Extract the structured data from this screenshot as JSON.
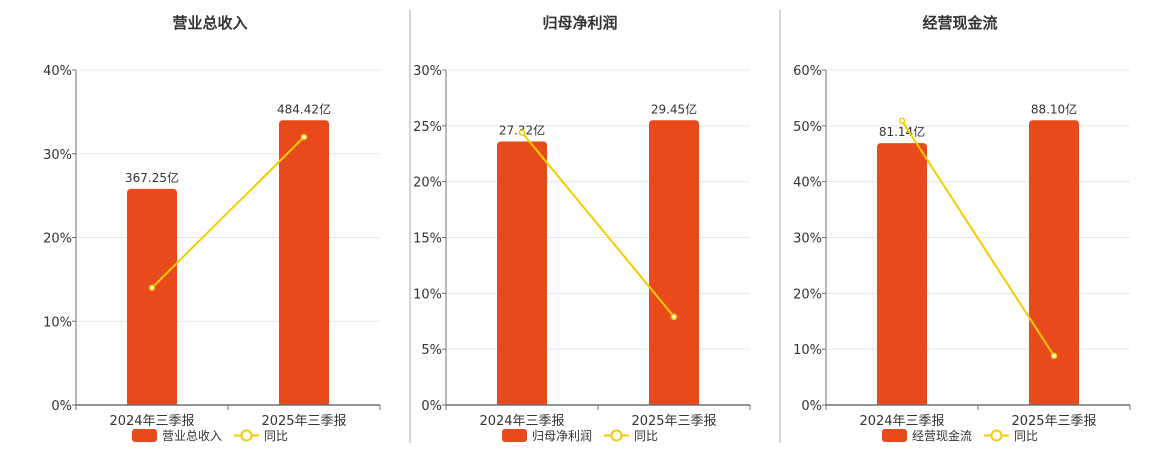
{
  "colors": {
    "bar": "#E84A1B",
    "line": "#F5CC00",
    "grid": "#E6E8EE",
    "axis": "#6E7079",
    "divider": "#AAAAAA"
  },
  "chart_data": [
    {
      "type": "bar+line",
      "title": "营业总收入",
      "categories": [
        "2024年三季报",
        "2025年三季报"
      ],
      "ylim": [
        0,
        40
      ],
      "yticks": [
        "0%",
        "10%",
        "20%",
        "30%",
        "40%"
      ],
      "bar_series": {
        "name": "营业总收入",
        "axis_values": [
          25.8,
          34.0
        ],
        "labels": [
          "367.25亿",
          "484.42亿"
        ]
      },
      "line_series": {
        "name": "同比",
        "values": [
          14.0,
          32.0
        ]
      },
      "legend": "bottom-center"
    },
    {
      "type": "bar+line",
      "title": "归母净利润",
      "categories": [
        "2024年三季报",
        "2025年三季报"
      ],
      "ylim": [
        0,
        30
      ],
      "yticks": [
        "0%",
        "5%",
        "10%",
        "15%",
        "20%",
        "25%",
        "30%"
      ],
      "bar_series": {
        "name": "归母净利润",
        "axis_values": [
          23.6,
          25.5
        ],
        "labels": [
          "27.32亿",
          "29.45亿"
        ]
      },
      "line_series": {
        "name": "同比",
        "values": [
          24.4,
          7.9
        ]
      },
      "legend": "bottom-center"
    },
    {
      "type": "bar+line",
      "title": "经营现金流",
      "categories": [
        "2024年三季报",
        "2025年三季报"
      ],
      "ylim": [
        0,
        60
      ],
      "yticks": [
        "0%",
        "10%",
        "20%",
        "30%",
        "40%",
        "50%",
        "60%"
      ],
      "bar_series": {
        "name": "经营现金流",
        "axis_values": [
          46.9,
          51.0
        ],
        "labels": [
          "81.14亿",
          "88.10亿"
        ]
      },
      "line_series": {
        "name": "同比",
        "values": [
          50.9,
          8.8
        ]
      },
      "legend": "bottom-center"
    }
  ]
}
